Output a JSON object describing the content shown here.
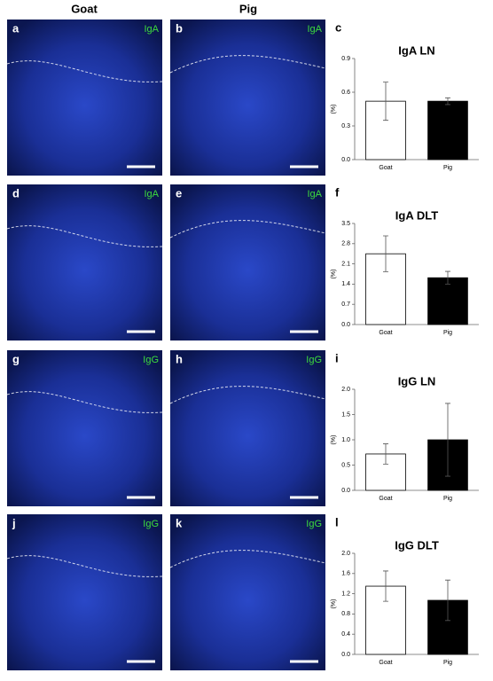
{
  "figure": {
    "columns": [
      "Goat",
      "Pig"
    ],
    "panels": [
      {
        "letter": "a",
        "stain": "IgA"
      },
      {
        "letter": "b",
        "stain": "IgA"
      },
      {
        "letter": "d",
        "stain": "IgA"
      },
      {
        "letter": "e",
        "stain": "IgA"
      },
      {
        "letter": "g",
        "stain": "IgG"
      },
      {
        "letter": "h",
        "stain": "IgG"
      },
      {
        "letter": "j",
        "stain": "IgG"
      },
      {
        "letter": "k",
        "stain": "IgG"
      }
    ]
  },
  "chart_data": [
    {
      "type": "bar",
      "label": "c",
      "title": "IgA LN",
      "y_label": "(%)",
      "categories": [
        "Goat",
        "Pig"
      ],
      "values": [
        0.52,
        0.52
      ],
      "errors": [
        0.17,
        0.03
      ],
      "colors": [
        "#ffffff",
        "#000000"
      ],
      "ylim": [
        0,
        0.9
      ],
      "yticks": [
        {
          "value": 0,
          "label": "0.0"
        },
        0.3,
        0.6,
        0.9
      ]
    },
    {
      "type": "bar",
      "label": "f",
      "title": "IgA DLT",
      "y_label": "(%)",
      "categories": [
        "Goat",
        "Pig"
      ],
      "values": [
        2.45,
        1.62
      ],
      "errors": [
        0.62,
        0.22
      ],
      "colors": [
        "#ffffff",
        "#000000"
      ],
      "ylim": [
        0,
        3.5
      ],
      "yticks": [
        {
          "value": 0,
          "label": "0.0"
        },
        0.7,
        1.4,
        2.1,
        2.8,
        3.5
      ]
    },
    {
      "type": "bar",
      "label": "i",
      "title": "IgG LN",
      "y_label": "(%)",
      "categories": [
        "Goat",
        "Pig"
      ],
      "values": [
        0.72,
        1.0
      ],
      "errors": [
        0.2,
        0.72
      ],
      "colors": [
        "#ffffff",
        "#000000"
      ],
      "ylim": [
        0,
        2
      ],
      "yticks": [
        {
          "value": 0,
          "label": "0.0"
        },
        0.5,
        {
          "value": 1,
          "label": "1.0"
        },
        1.5,
        {
          "value": 2,
          "label": "2.0"
        }
      ]
    },
    {
      "type": "bar",
      "label": "l",
      "title": "IgG DLT",
      "y_label": "(%)",
      "categories": [
        "Goat",
        "Pig"
      ],
      "values": [
        1.35,
        1.07
      ],
      "errors": [
        0.3,
        0.4
      ],
      "colors": [
        "#ffffff",
        "#000000"
      ],
      "ylim": [
        0,
        2
      ],
      "yticks": [
        {
          "value": 0,
          "label": "0.0"
        },
        0.4,
        0.8,
        1.2,
        1.6,
        {
          "value": 2,
          "label": "2.0"
        }
      ]
    }
  ]
}
